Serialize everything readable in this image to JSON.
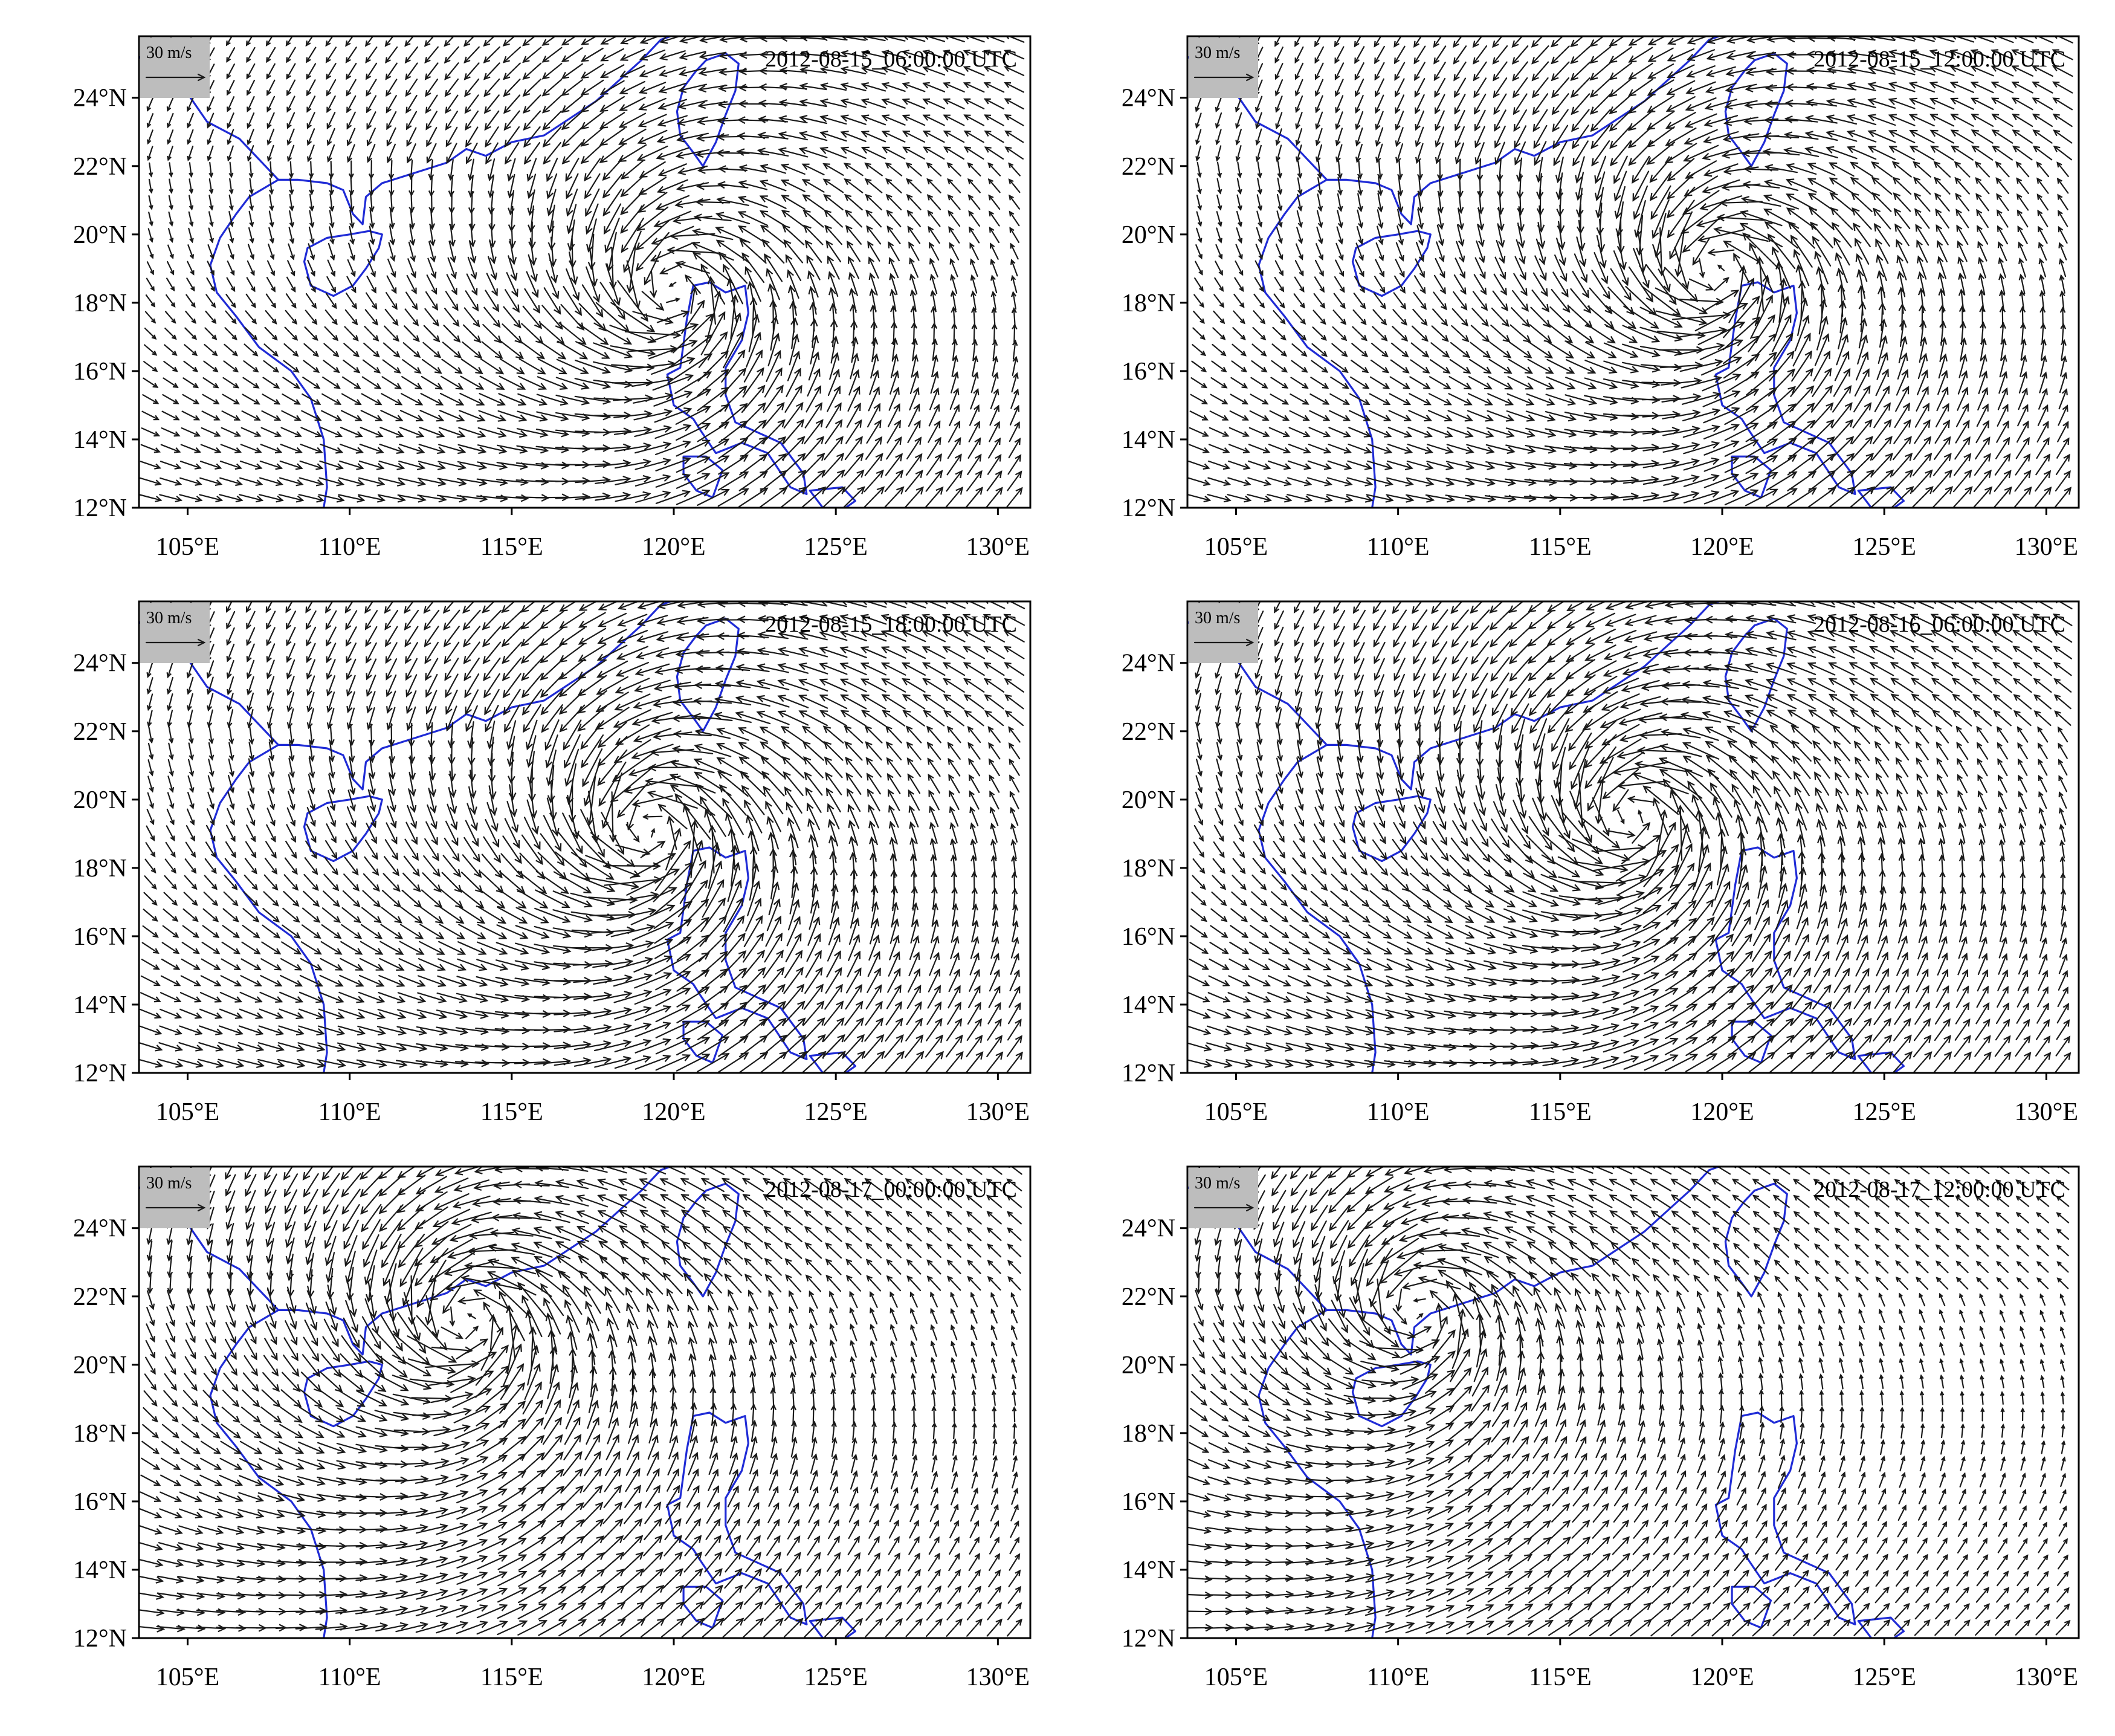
{
  "figure": {
    "vector_color": "#1a1a1a",
    "coastline_color": "#1f2bd6",
    "legend_bg": "#bdbdbd"
  },
  "map_extent": {
    "lon_min": 103.5,
    "lon_max": 131.0,
    "lat_min": 12.0,
    "lat_max": 25.8
  },
  "axes": {
    "lat_ticks": [
      {
        "value": 12,
        "label": "12°N"
      },
      {
        "value": 14,
        "label": "14°N"
      },
      {
        "value": 16,
        "label": "16°N"
      },
      {
        "value": 18,
        "label": "18°N"
      },
      {
        "value": 20,
        "label": "20°N"
      },
      {
        "value": 22,
        "label": "22°N"
      },
      {
        "value": 24,
        "label": "24°N"
      }
    ],
    "lon_ticks": [
      {
        "value": 105,
        "label": "105°E"
      },
      {
        "value": 110,
        "label": "110°E"
      },
      {
        "value": 115,
        "label": "115°E"
      },
      {
        "value": 120,
        "label": "120°E"
      },
      {
        "value": 125,
        "label": "125°E"
      },
      {
        "value": 130,
        "label": "130°E"
      }
    ]
  },
  "reference_vector": {
    "label": "30 m/s",
    "speed_ms": 30
  },
  "panels": [
    {
      "time": "2012-08-15_06:00:00 UTC",
      "cyclone_center": {
        "lon": 120.0,
        "lat": 18.3
      },
      "max_wind_ms": 28
    },
    {
      "time": "2012-08-15_12:00:00 UTC",
      "cyclone_center": {
        "lon": 119.8,
        "lat": 18.9
      },
      "max_wind_ms": 30
    },
    {
      "time": "2012-08-15_18:00:00 UTC",
      "cyclone_center": {
        "lon": 119.2,
        "lat": 19.1
      },
      "max_wind_ms": 32
    },
    {
      "time": "2012-08-16_06:00:00 UTC",
      "cyclone_center": {
        "lon": 117.2,
        "lat": 19.5
      },
      "max_wind_ms": 32
    },
    {
      "time": "2012-08-17_00:00:00 UTC",
      "cyclone_center": {
        "lon": 113.6,
        "lat": 21.3
      },
      "max_wind_ms": 30
    },
    {
      "time": "2012-08-17_12:00:00 UTC",
      "cyclone_center": {
        "lon": 110.6,
        "lat": 21.6
      },
      "max_wind_ms": 26
    }
  ],
  "coastlines": {
    "mainland": [
      [
        103.5,
        25.2
      ],
      [
        104.8,
        24.4
      ],
      [
        105.6,
        23.3
      ],
      [
        106.6,
        22.8
      ],
      [
        107.8,
        21.6
      ],
      [
        108.4,
        21.6
      ],
      [
        109.3,
        21.5
      ],
      [
        109.8,
        21.3
      ],
      [
        110.1,
        20.6
      ],
      [
        110.4,
        20.3
      ],
      [
        110.5,
        21.1
      ],
      [
        111.0,
        21.5
      ],
      [
        112.0,
        21.8
      ],
      [
        113.0,
        22.1
      ],
      [
        113.6,
        22.5
      ],
      [
        114.2,
        22.3
      ],
      [
        115.0,
        22.7
      ],
      [
        116.0,
        22.9
      ],
      [
        116.8,
        23.4
      ],
      [
        117.6,
        23.9
      ],
      [
        118.3,
        24.5
      ],
      [
        119.0,
        25.1
      ],
      [
        119.6,
        25.7
      ],
      [
        119.9,
        25.8
      ]
    ],
    "indochina": [
      [
        107.8,
        21.6
      ],
      [
        106.9,
        21.1
      ],
      [
        106.5,
        20.6
      ],
      [
        106.0,
        19.9
      ],
      [
        105.7,
        19.1
      ],
      [
        105.9,
        18.3
      ],
      [
        106.5,
        17.6
      ],
      [
        107.2,
        16.7
      ],
      [
        108.2,
        16.0
      ],
      [
        108.8,
        15.2
      ],
      [
        109.2,
        14.0
      ],
      [
        109.3,
        12.6
      ],
      [
        109.2,
        12.0
      ]
    ],
    "hainan": [
      [
        108.6,
        19.2
      ],
      [
        108.8,
        18.5
      ],
      [
        109.5,
        18.2
      ],
      [
        110.1,
        18.5
      ],
      [
        110.5,
        19.0
      ],
      [
        110.9,
        19.6
      ],
      [
        111.0,
        20.0
      ],
      [
        110.6,
        20.1
      ],
      [
        110.0,
        20.0
      ],
      [
        109.3,
        19.9
      ],
      [
        108.7,
        19.6
      ],
      [
        108.6,
        19.2
      ]
    ],
    "taiwan": [
      [
        121.0,
        25.1
      ],
      [
        121.6,
        25.3
      ],
      [
        122.0,
        25.0
      ],
      [
        121.9,
        24.2
      ],
      [
        121.6,
        23.5
      ],
      [
        121.3,
        22.7
      ],
      [
        120.9,
        22.0
      ],
      [
        120.6,
        22.4
      ],
      [
        120.2,
        22.9
      ],
      [
        120.1,
        23.6
      ],
      [
        120.3,
        24.3
      ],
      [
        120.7,
        24.8
      ],
      [
        121.0,
        25.1
      ]
    ],
    "luzon": [
      [
        120.6,
        18.5
      ],
      [
        121.1,
        18.6
      ],
      [
        121.6,
        18.3
      ],
      [
        122.2,
        18.5
      ],
      [
        122.3,
        17.7
      ],
      [
        122.1,
        16.9
      ],
      [
        121.6,
        16.1
      ],
      [
        121.6,
        15.3
      ],
      [
        121.9,
        14.5
      ],
      [
        122.6,
        14.2
      ],
      [
        123.3,
        13.9
      ],
      [
        124.0,
        13.0
      ],
      [
        124.1,
        12.4
      ],
      [
        123.6,
        12.6
      ],
      [
        122.9,
        13.6
      ],
      [
        122.1,
        13.9
      ],
      [
        121.3,
        13.6
      ],
      [
        120.8,
        14.3
      ],
      [
        120.6,
        14.6
      ],
      [
        120.0,
        15.0
      ],
      [
        119.8,
        15.9
      ],
      [
        120.2,
        16.1
      ],
      [
        120.4,
        17.5
      ],
      [
        120.6,
        18.5
      ]
    ],
    "mindoro": [
      [
        120.3,
        13.5
      ],
      [
        121.0,
        13.5
      ],
      [
        121.5,
        13.1
      ],
      [
        121.2,
        12.3
      ],
      [
        120.7,
        12.5
      ],
      [
        120.3,
        13.0
      ],
      [
        120.3,
        13.5
      ]
    ],
    "samar": [
      [
        124.2,
        12.5
      ],
      [
        125.2,
        12.6
      ],
      [
        125.6,
        12.2
      ],
      [
        125.3,
        12.0
      ],
      [
        124.6,
        12.0
      ],
      [
        124.2,
        12.5
      ]
    ]
  }
}
